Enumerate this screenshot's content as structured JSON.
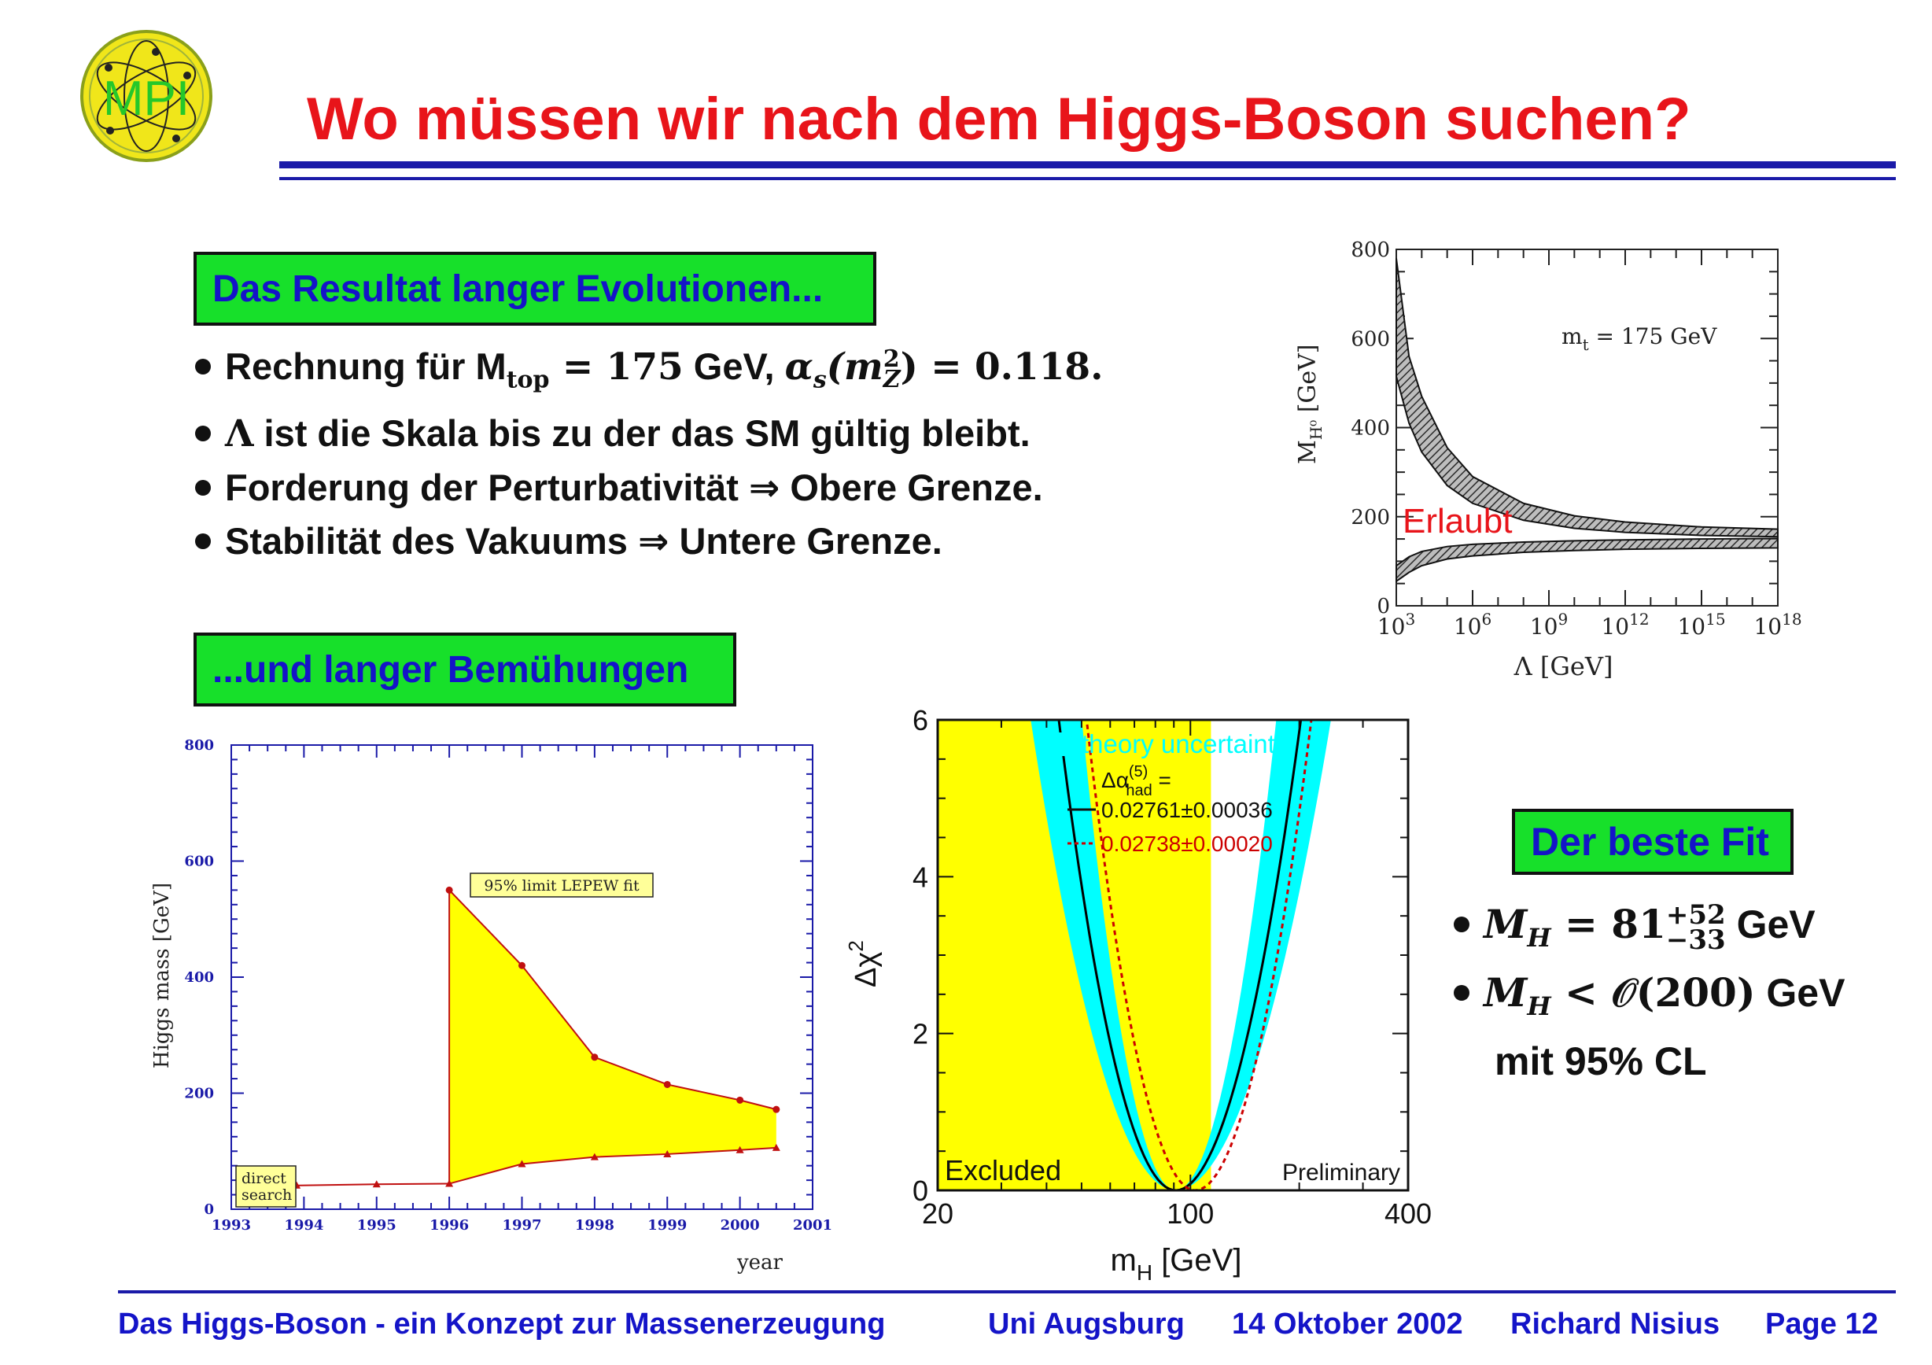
{
  "logo": {
    "text": "MPI"
  },
  "title": "Wo müssen wir nach dem Higgs-Boson suchen?",
  "section1": {
    "label": "Das Resultat langer Evolutionen..."
  },
  "bullets": {
    "b1_a": "Rechnung für M",
    "b1_sub": "top",
    "b1_b": " = 175",
    "b1_c": " GeV, ",
    "b1_d": "α",
    "b1_e": "s",
    "b1_f": "(m",
    "b1_g": "2",
    "b1_h": "Z",
    "b1_i": ") = 0.118.",
    "b2_sym": "Λ",
    "b2": " ist die Skala bis zu der das SM gültig bleibt.",
    "b3": "Forderung der Perturbativität ⇒ Obere Grenze.",
    "b4": "Stabilität des Vakuums ⇒ Untere Grenze."
  },
  "section2": {
    "label": "...und langer Bemühungen"
  },
  "section3": {
    "label": "Der beste Fit"
  },
  "fit": {
    "l1_m": "M",
    "l1_sub": "H",
    "l1_eq": " = 81",
    "l1_sup": "+52",
    "l1_low": "−33",
    "l1_unit": " GeV",
    "l2_m": "M",
    "l2_sub": "H",
    "l2_rel": " < 𝒪(200)",
    "l2_unit": " GeV",
    "l3": "mit 95% CL"
  },
  "chart_data": [
    {
      "type": "area",
      "title": "",
      "xlabel": "Λ [GeV]",
      "ylabel": "M_H⁰ [GeV]",
      "ylabel_main": "M",
      "ylabel_sub": "H⁰",
      "ylabel_unit": " [GeV]",
      "xlabel_main": "Λ [GeV]",
      "x_log10": [
        3,
        6,
        9,
        12,
        15,
        18
      ],
      "x_ticks": [
        {
          "base": "10",
          "exp": "3"
        },
        {
          "base": "10",
          "exp": "6"
        },
        {
          "base": "10",
          "exp": "9"
        },
        {
          "base": "10",
          "exp": "12"
        },
        {
          "base": "10",
          "exp": "15"
        },
        {
          "base": "10",
          "exp": "18"
        }
      ],
      "y_ticks": [
        "0",
        "200",
        "400",
        "600",
        "800"
      ],
      "ylim": [
        0,
        800
      ],
      "annotation": "m",
      "annotation_sub": "t",
      "annotation_rest": " = 175 GeV",
      "region_label": "Erlaubt",
      "series": [
        {
          "band": "upper",
          "x_log10": [
            3,
            3.5,
            4,
            5,
            6,
            8,
            10,
            12,
            15,
            18
          ],
          "y_low": [
            515,
            410,
            345,
            270,
            230,
            192,
            174,
            165,
            158,
            155
          ],
          "y_high": [
            780,
            560,
            470,
            355,
            290,
            230,
            202,
            188,
            177,
            172
          ]
        },
        {
          "band": "lower",
          "x_log10": [
            3,
            3.5,
            4,
            5,
            6,
            8,
            10,
            12,
            15,
            18
          ],
          "y_low": [
            55,
            75,
            90,
            105,
            112,
            120,
            124,
            127,
            129,
            130
          ],
          "y_high": [
            90,
            110,
            122,
            133,
            138,
            143,
            146,
            148,
            150,
            151
          ]
        }
      ]
    },
    {
      "type": "area",
      "title": "",
      "xlabel": "year",
      "ylabel": "Higgs mass [GeV]",
      "xlim": [
        1993,
        2001
      ],
      "ylim": [
        0,
        800
      ],
      "x_ticks": [
        "1993",
        "1994",
        "1995",
        "1996",
        "1997",
        "1998",
        "1999",
        "2000",
        "2001"
      ],
      "y_ticks": [
        "0",
        "200",
        "400",
        "600",
        "800"
      ],
      "annotation": "95% limit LEPEW fit",
      "annotation2": "direct",
      "annotation3": "search",
      "series": [
        {
          "name": "95% limit LEPEW fit",
          "x": [
            1996,
            1997,
            1998,
            1999,
            2000,
            2000.5
          ],
          "y": [
            550,
            420,
            262,
            215,
            188,
            172
          ]
        },
        {
          "name": "direct search",
          "x": [
            1993.9,
            1995,
            1996,
            1997,
            1998,
            1999,
            2000,
            2000.5
          ],
          "y": [
            41,
            43,
            44,
            78,
            90,
            95,
            102,
            106
          ]
        }
      ],
      "colors": {
        "fill": "#ffff00",
        "line": "#c01010",
        "axis": "#1a1aa8"
      }
    },
    {
      "type": "line",
      "title": "",
      "xlabel": "m",
      "xlabel_sub": "H",
      "xlabel_unit": " [GeV]",
      "ylabel": "Δχ",
      "ylabel_sup": "2",
      "x_log": true,
      "xlim": [
        20,
        400
      ],
      "ylim": [
        0,
        6
      ],
      "x_ticks": [
        "20",
        "100",
        "400"
      ],
      "y_ticks": [
        "0",
        "2",
        "4",
        "6"
      ],
      "excluded_below": 114,
      "excluded_label": "Excluded",
      "preliminary_label": "Preliminary",
      "legend": {
        "band": "theory uncertainty",
        "dalpha": "Δα",
        "dalpha_sup": "(5)",
        "dalpha_sub": "had",
        "dalpha_eq": " =",
        "black": "0.02761±0.00036",
        "red": "0.02738±0.00020"
      },
      "series": [
        {
          "name": "0.02761±0.00036",
          "minimum_x": 91,
          "minimum_y": 0,
          "curvature": 5.0
        },
        {
          "name": "0.02738±0.00020",
          "minimum_x": 103,
          "minimum_y": 0,
          "curvature": 5.8
        }
      ],
      "colors": {
        "band": "#00ffff",
        "excluded": "#ffff00",
        "black": "#000000",
        "red": "#cc0000"
      }
    }
  ],
  "footer": {
    "f1": "Das Higgs-Boson - ein Konzept zur Massenerzeugung",
    "f2": "Uni Augsburg",
    "f3": "14 Oktober 2002",
    "f4": "Richard Nisius",
    "f5": "Page 12"
  }
}
